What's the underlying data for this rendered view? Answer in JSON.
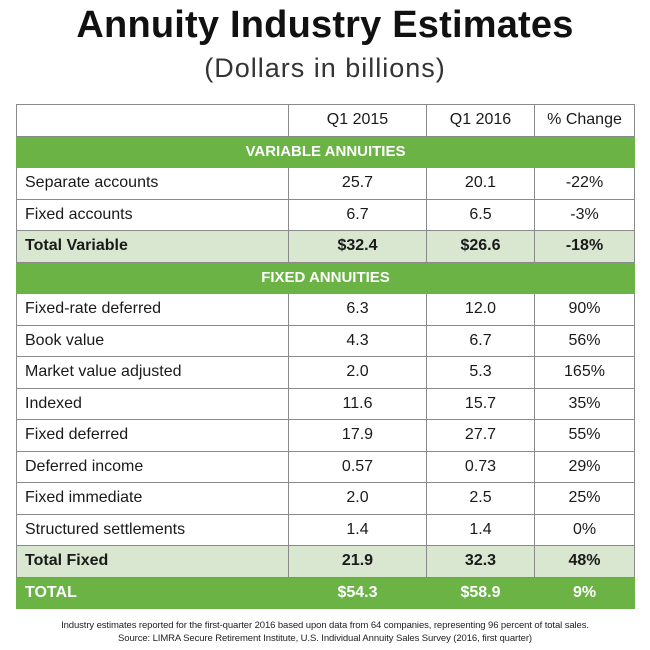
{
  "title": "Annuity Industry Estimates",
  "subtitle": "(Dollars in billions)",
  "columns": [
    "",
    "Q1 2015",
    "Q1 2016",
    "% Change"
  ],
  "variable_section": {
    "header": "VARIABLE ANNUITIES",
    "rows": [
      {
        "label": "Separate accounts",
        "q1_2015": "25.7",
        "q1_2016": "20.1",
        "change": "-22%"
      },
      {
        "label": "Fixed accounts",
        "q1_2015": "6.7",
        "q1_2016": "6.5",
        "change": "-3%"
      }
    ],
    "total": {
      "label": "Total Variable",
      "q1_2015": "$32.4",
      "q1_2016": "$26.6",
      "change": "-18%"
    }
  },
  "fixed_section": {
    "header": "FIXED ANNUITIES",
    "rows": [
      {
        "label": "Fixed-rate deferred",
        "q1_2015": "6.3",
        "q1_2016": "12.0",
        "change": "90%"
      },
      {
        "label": "Book value",
        "q1_2015": "4.3",
        "q1_2016": "6.7",
        "change": "56%"
      },
      {
        "label": "Market value adjusted",
        "q1_2015": "2.0",
        "q1_2016": "5.3",
        "change": "165%"
      },
      {
        "label": "Indexed",
        "q1_2015": "11.6",
        "q1_2016": "15.7",
        "change": "35%"
      },
      {
        "label": "Fixed deferred",
        "q1_2015": "17.9",
        "q1_2016": "27.7",
        "change": "55%"
      },
      {
        "label": "Deferred income",
        "q1_2015": "0.57",
        "q1_2016": "0.73",
        "change": "29%"
      },
      {
        "label": "Fixed immediate",
        "q1_2015": "2.0",
        "q1_2016": "2.5",
        "change": "25%"
      },
      {
        "label": "Structured settlements",
        "q1_2015": "1.4",
        "q1_2016": "1.4",
        "change": "0%"
      }
    ],
    "total": {
      "label": "Total Fixed",
      "q1_2015": "21.9",
      "q1_2016": "32.3",
      "change": "48%"
    }
  },
  "grand_total": {
    "label": "TOTAL",
    "q1_2015": "$54.3",
    "q1_2016": "$58.9",
    "change": "9%"
  },
  "colors": {
    "accent_green": "#6ab344",
    "subtotal_tint": "#d9e6d0"
  },
  "footnotes": [
    "Industry estimates reported for the first-quarter 2016 based upon data from 64 companies, representing 96 percent of total sales.",
    "Source: LIMRA Secure Retirement Institute, U.S. Individual Annuity Sales Survey (2016, first quarter)"
  ]
}
